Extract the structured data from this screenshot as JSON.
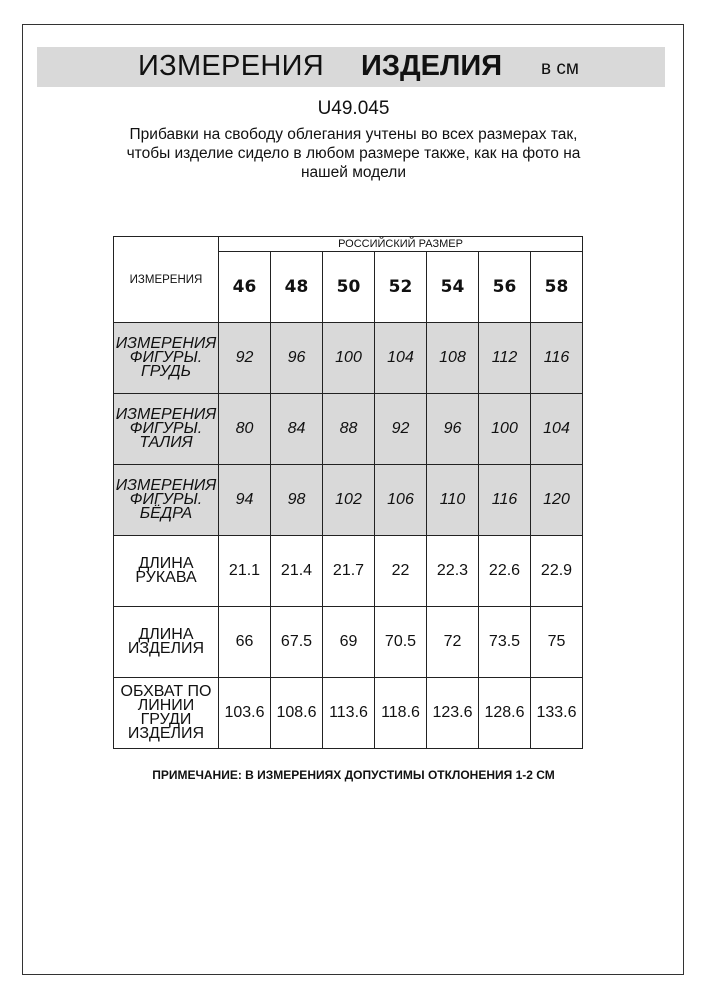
{
  "header": {
    "title_part1": "ИЗМЕРЕНИЯ",
    "title_part2": "ИЗДЕЛИЯ",
    "unit": "в см"
  },
  "product_code": "U49.045",
  "note_lines": [
    "Прибавки на свободу облегания учтены во всех размерах так,",
    "чтобы изделие сидело в любом размере также, как на фото на",
    "нашей модели"
  ],
  "table": {
    "corner_label": "ИЗМЕРЕНИЯ",
    "size_group_label": "РОССИЙСКИЙ РАЗМЕР",
    "sizes": [
      "46",
      "48",
      "50",
      "52",
      "54",
      "56",
      "58"
    ],
    "rows": [
      {
        "label": [
          "ИЗМЕРЕНИЯ",
          "ФИГУРЫ. ГРУДЬ"
        ],
        "shaded": true,
        "values": [
          "92",
          "96",
          "100",
          "104",
          "108",
          "112",
          "116"
        ]
      },
      {
        "label": [
          "ИЗМЕРЕНИЯ",
          "ФИГУРЫ. ТАЛИЯ"
        ],
        "shaded": true,
        "values": [
          "80",
          "84",
          "88",
          "92",
          "96",
          "100",
          "104"
        ]
      },
      {
        "label": [
          "ИЗМЕРЕНИЯ",
          "ФИГУРЫ. БЁДРА"
        ],
        "shaded": true,
        "values": [
          "94",
          "98",
          "102",
          "106",
          "110",
          "116",
          "120"
        ]
      },
      {
        "label": [
          "ДЛИНА РУКАВА"
        ],
        "shaded": false,
        "values": [
          "21.1",
          "21.4",
          "21.7",
          "22",
          "22.3",
          "22.6",
          "22.9"
        ]
      },
      {
        "label": [
          "ДЛИНА ИЗДЕЛИЯ"
        ],
        "shaded": false,
        "values": [
          "66",
          "67.5",
          "69",
          "70.5",
          "72",
          "73.5",
          "75"
        ]
      },
      {
        "label": [
          "ОБХВАТ ПО",
          "ЛИНИИ ГРУДИ",
          "ИЗДЕЛИЯ"
        ],
        "shaded": false,
        "values": [
          "103.6",
          "108.6",
          "113.6",
          "118.6",
          "123.6",
          "128.6",
          "133.6"
        ]
      }
    ]
  },
  "footnote": "ПРИМЕЧАНИЕ: В ИЗМЕРЕНИЯХ ДОПУСТИМЫ ОТКЛОНЕНИЯ 1-2 СМ",
  "colors": {
    "shade": "#d9d9d9",
    "border": "#222222"
  }
}
